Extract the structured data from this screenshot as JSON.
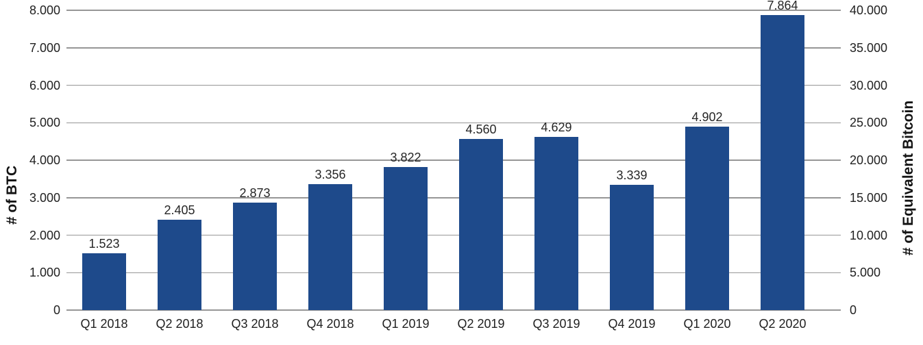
{
  "chart_data": {
    "type": "bar",
    "title": "",
    "categories": [
      "Q1 2018",
      "Q2 2018",
      "Q3 2018",
      "Q4 2018",
      "Q1 2019",
      "Q2 2019",
      "Q3 2019",
      "Q4 2019",
      "Q1 2020",
      "Q2 2020"
    ],
    "values": [
      1523,
      2405,
      2873,
      3356,
      3822,
      4560,
      4629,
      3339,
      4902,
      7864
    ],
    "bar_labels": [
      "1.523",
      "2.405",
      "2.873",
      "3.356",
      "3.822",
      "4.560",
      "4.629",
      "3.339",
      "4.902",
      "7.864"
    ],
    "left_axis": {
      "title": "# of BTC",
      "min": 0,
      "max": 8000,
      "tick_step": 1000,
      "tick_labels": [
        "0",
        "1.000",
        "2.000",
        "3.000",
        "4.000",
        "5.000",
        "6.000",
        "7.000",
        "8.000"
      ]
    },
    "right_axis": {
      "title": "# of Equivalent Bitcoin",
      "min": 0,
      "max": 40000,
      "tick_step": 5000,
      "tick_labels": [
        "0",
        "5.000",
        "10.000",
        "15.000",
        "20.000",
        "25.000",
        "30.000",
        "35.000",
        "40.000"
      ]
    },
    "layout": {
      "grid": true,
      "legend": false,
      "data_labels": "above-bars",
      "number_format": "thousands-dot"
    },
    "colors": {
      "bar": "#1E4A8B",
      "gridline": "#969696",
      "tick_text": "#212121",
      "data_label_text": "#262626",
      "axis_title_text": "#141414",
      "background": "#FFFFFF"
    }
  }
}
